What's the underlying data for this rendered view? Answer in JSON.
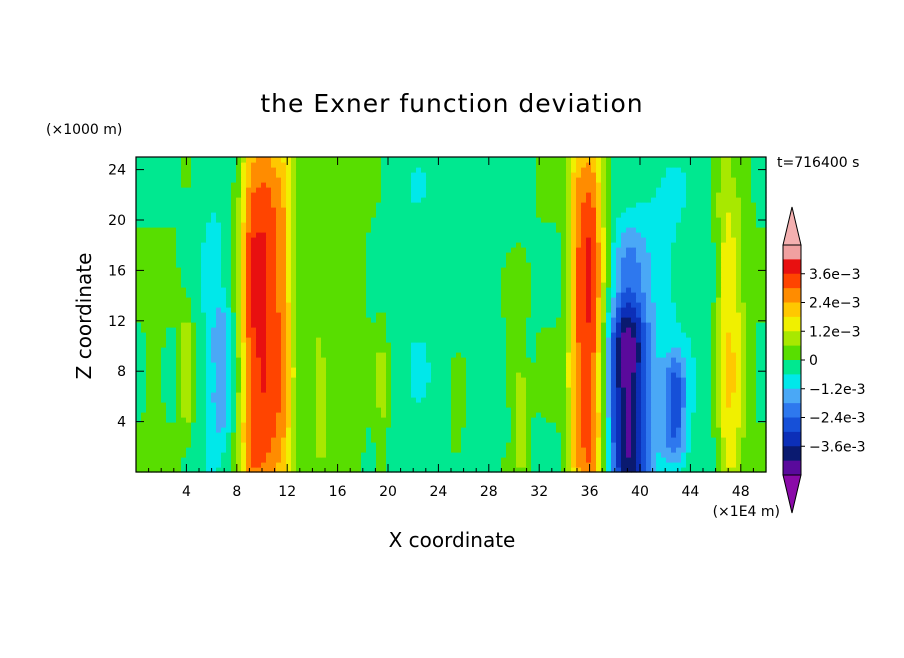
{
  "chart_data": {
    "type": "heatmap",
    "title": "the Exner function deviation",
    "time_label": "t=716400 s",
    "xlabel": "X coordinate",
    "ylabel": "Z coordinate",
    "x_unit": "(×1E4 m)",
    "y_unit": "(×1000 m)",
    "xlim": [
      0,
      50
    ],
    "ylim": [
      0,
      25
    ],
    "x_ticks": [
      4,
      8,
      12,
      16,
      20,
      24,
      28,
      32,
      36,
      40,
      44,
      48
    ],
    "y_ticks": [
      4,
      8,
      12,
      16,
      20,
      24
    ],
    "colorbar": {
      "labels": [
        "3.6e-3",
        "2.4e-3",
        "1.2e-3",
        "0",
        "-1.2e-3",
        "-2.4e-3",
        "-3.6e-3"
      ],
      "label_values": [
        0.0036,
        0.0024,
        0.0012,
        0,
        -0.0012,
        -0.0024,
        -0.0036
      ],
      "levels": [
        -0.0042,
        -0.0036,
        -0.003,
        -0.0024,
        -0.0018,
        -0.0012,
        -0.0006,
        0,
        0.0006,
        0.0012,
        0.0018,
        0.0024,
        0.003,
        0.0036,
        0.0042
      ],
      "colors": [
        "#5a0a9c",
        "#0a1a70",
        "#0c2fb8",
        "#1650d8",
        "#2e78ee",
        "#4aa8f6",
        "#00e8ea",
        "#00e890",
        "#58de00",
        "#a8e800",
        "#f0f000",
        "#ffc800",
        "#ff8c00",
        "#ff4400",
        "#e81010",
        "#f0a0a0"
      ],
      "under_color": "#8a0aa8",
      "over_color": "#f4b0b0"
    },
    "field_description": "Vertical column structures: strong positive band near X=9.5-11 and X=35-37, negative region near X=38-40, weak fluctuations elsewhere",
    "features": [
      {
        "x": 10.2,
        "width": 1.6,
        "amplitude": 0.0036,
        "z_center": 12,
        "z_extent": 30
      },
      {
        "x": 9.0,
        "width": 0.7,
        "amplitude": 0.0012,
        "z_center": 12,
        "z_extent": 30
      },
      {
        "x": 11.8,
        "width": 0.8,
        "amplitude": 0.0012,
        "z_center": 10,
        "z_extent": 30
      },
      {
        "x": 36.0,
        "width": 1.2,
        "amplitude": 0.0038,
        "z_center": 12,
        "z_extent": 30
      },
      {
        "x": 34.8,
        "width": 0.6,
        "amplitude": 0.0012,
        "z_center": 12,
        "z_extent": 30
      },
      {
        "x": 39.0,
        "width": 1.6,
        "amplitude": -0.0038,
        "z_center": 5,
        "z_extent": 14
      },
      {
        "x": 39.0,
        "width": 1.4,
        "amplitude": -0.0014,
        "z_center": 14,
        "z_extent": 10
      },
      {
        "x": 42.8,
        "width": 0.9,
        "amplitude": -0.002,
        "z_center": 5,
        "z_extent": 8
      },
      {
        "x": 41.0,
        "width": 4.0,
        "amplitude": -0.0008,
        "z_center": 12,
        "z_extent": 30
      },
      {
        "x": 47.4,
        "width": 0.9,
        "amplitude": 0.0016,
        "z_center": 9,
        "z_extent": 24
      },
      {
        "x": 46.6,
        "width": 0.6,
        "amplitude": 0.0008,
        "z_center": 14,
        "z_extent": 30
      },
      {
        "x": 6.8,
        "width": 0.8,
        "amplitude": -0.0012,
        "z_center": 8,
        "z_extent": 10
      },
      {
        "x": 6.2,
        "width": 1.5,
        "amplitude": -0.0007,
        "z_center": 12,
        "z_extent": 30
      },
      {
        "x": 4.0,
        "width": 0.5,
        "amplitude": 0.001,
        "z_center": 8,
        "z_extent": 10
      },
      {
        "x": 1.5,
        "width": 0.5,
        "amplitude": 0.0007,
        "z_center": 8,
        "z_extent": 12
      },
      {
        "x": 14.5,
        "width": 0.6,
        "amplitude": 0.0007,
        "z_center": 6,
        "z_extent": 10
      },
      {
        "x": 19.5,
        "width": 0.5,
        "amplitude": 0.0008,
        "z_center": 6,
        "z_extent": 12
      },
      {
        "x": 22.0,
        "width": 2.5,
        "amplitude": -0.0005,
        "z_center": 14,
        "z_extent": 30
      },
      {
        "x": 25.5,
        "width": 0.6,
        "amplitude": 0.0006,
        "z_center": 5,
        "z_extent": 8
      },
      {
        "x": 30.6,
        "width": 0.5,
        "amplitude": 0.001,
        "z_center": 4,
        "z_extent": 8
      },
      {
        "x": 30.0,
        "width": 0.7,
        "amplitude": 0.0006,
        "z_center": 10,
        "z_extent": 10
      },
      {
        "x": 16.0,
        "width": 2.0,
        "amplitude": 0.0004,
        "z_center": 14,
        "z_extent": 30
      },
      {
        "x": 27.0,
        "width": 3.0,
        "amplitude": -0.0003,
        "z_center": 12,
        "z_extent": 30
      }
    ]
  }
}
